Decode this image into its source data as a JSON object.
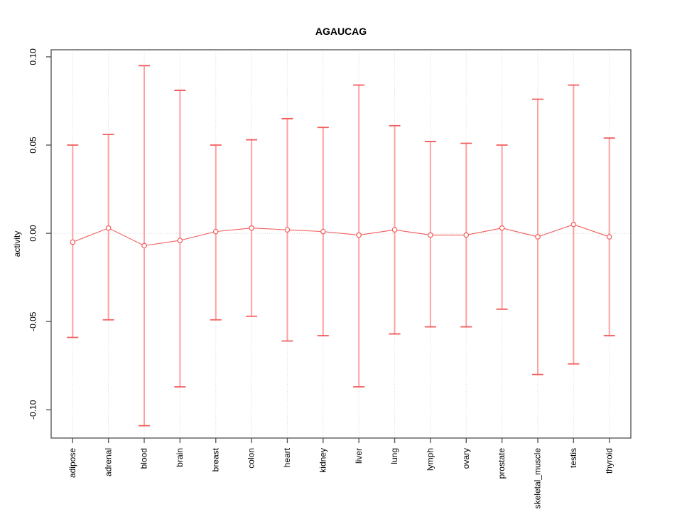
{
  "chart_data": {
    "type": "scatter",
    "subtype": "points-with-error-bars-and-connecting-line",
    "title": "AGAUCAG",
    "xlabel": "",
    "ylabel": "activity",
    "ylim": [
      -0.116,
      0.104
    ],
    "ytick_values": [
      0.1,
      0.05,
      0.0,
      -0.05,
      -0.1
    ],
    "ytick_labels": [
      "0.10",
      "0.05",
      "0.00",
      "-0.05",
      "-0.10"
    ],
    "grid": {
      "vertical_gridlines": "dotted",
      "zero_reference_line": "dotted at y=0",
      "legend": "none"
    },
    "categories": [
      "adipose",
      "adrenal",
      "blood",
      "brain",
      "breast",
      "colon",
      "heart",
      "kidney",
      "liver",
      "lung",
      "lymph",
      "ovary",
      "prostate",
      "skeletal_muscle",
      "testis",
      "thyroid"
    ],
    "series": [
      {
        "name": "activity",
        "values": [
          -0.005,
          0.003,
          -0.007,
          -0.004,
          0.001,
          0.003,
          0.002,
          0.001,
          -0.001,
          0.002,
          -0.001,
          -0.001,
          0.003,
          -0.002,
          0.005,
          -0.002
        ],
        "error_upper": [
          0.05,
          0.056,
          0.095,
          0.081,
          0.05,
          0.053,
          0.065,
          0.06,
          0.084,
          0.061,
          0.052,
          0.051,
          0.05,
          0.076,
          0.084,
          0.054
        ],
        "error_lower": [
          -0.059,
          -0.049,
          -0.109,
          -0.087,
          -0.049,
          -0.047,
          -0.061,
          -0.058,
          -0.087,
          -0.057,
          -0.053,
          -0.053,
          -0.043,
          -0.08,
          -0.074,
          -0.058
        ]
      }
    ],
    "colors": {
      "error_bar": "#ffa0a0",
      "error_cap": "#f25c5c",
      "point_stroke": "#f25c5c",
      "line": "#f25c5c",
      "gridline": "#d8d8d8",
      "zero_line": "#cfcfcf",
      "axis": "#5a5a5a",
      "text": "#000000",
      "background": "#ffffff"
    }
  }
}
